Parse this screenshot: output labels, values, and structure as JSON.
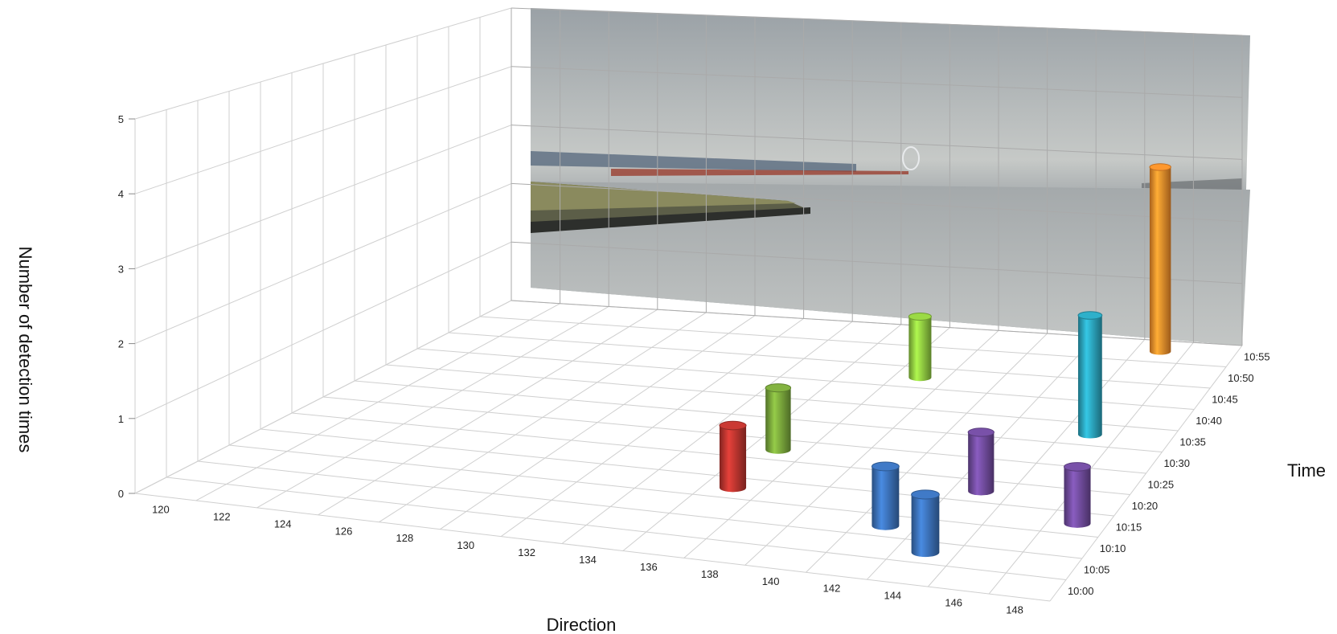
{
  "chart_data": {
    "type": "bar3d",
    "title": "",
    "xlabel": "Direction",
    "ylabel": "Time",
    "zlabel": "Number of detection times",
    "x_ticks": [
      "120",
      "122",
      "124",
      "126",
      "128",
      "130",
      "132",
      "134",
      "136",
      "138",
      "140",
      "142",
      "144",
      "146",
      "148"
    ],
    "y_ticks": [
      "10:00",
      "10:05",
      "10:10",
      "10:15",
      "10:20",
      "10:25",
      "10:30",
      "10:35",
      "10:40",
      "10:45",
      "10:50",
      "10:55"
    ],
    "z_ticks": [
      "0",
      "1",
      "2",
      "3",
      "4",
      "5"
    ],
    "zlim": [
      0,
      5
    ],
    "grid": true,
    "back_wall": "photo of a coastline and sea",
    "bars": [
      {
        "direction": 138,
        "time": "10:45",
        "value": 1,
        "color": "#8dc63f"
      },
      {
        "direction": 136,
        "time": "10:25",
        "value": 1,
        "color": "#77a33a"
      },
      {
        "direction": 136,
        "time": "10:15",
        "value": 1,
        "color": "#b8342e"
      },
      {
        "direction": 146,
        "time": "10:55",
        "value": 3,
        "color": "#f08a2a"
      },
      {
        "direction": 146,
        "time": "10:35",
        "value": 2,
        "color": "#2aa0b8"
      },
      {
        "direction": 142,
        "time": "10:10",
        "value": 1,
        "color": "#3a6fb5"
      },
      {
        "direction": 144,
        "time": "10:20",
        "value": 1,
        "color": "#6e4a9a"
      },
      {
        "direction": 144,
        "time": "10:05",
        "value": 1,
        "color": "#3a6fb5"
      },
      {
        "direction": 148,
        "time": "10:15",
        "value": 1,
        "color": "#6e4a9a"
      }
    ]
  }
}
